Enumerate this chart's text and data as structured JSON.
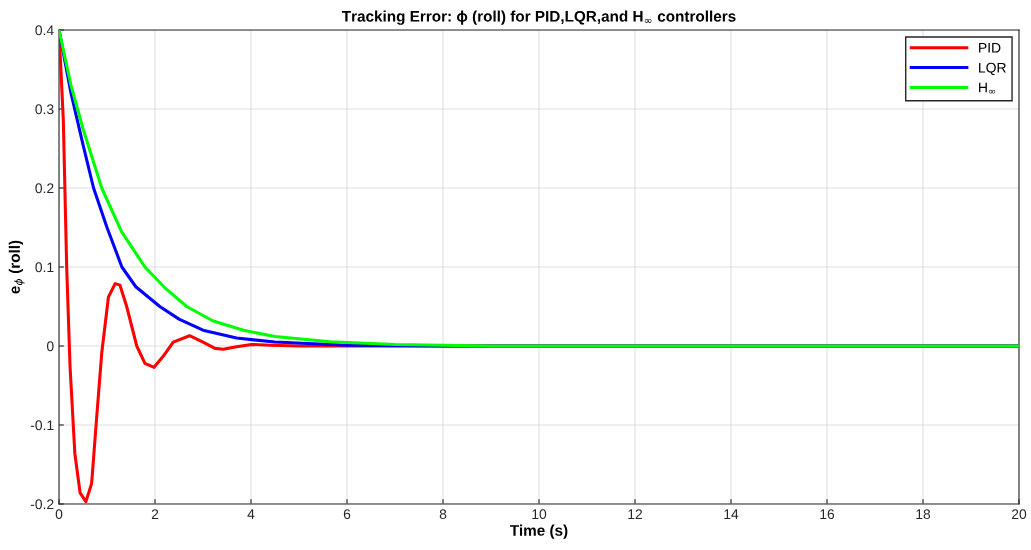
{
  "chart_data": {
    "type": "line",
    "title": "Tracking Error: ϕ (roll) for PID,LQR,and H$_{∞}$ controllers",
    "xlabel": "Time (s)",
    "ylabel": "e$_{ϕ}$ (roll)",
    "xlim": [
      0,
      20
    ],
    "xticks": [
      0,
      2,
      4,
      6,
      8,
      10,
      12,
      14,
      16,
      18,
      20
    ],
    "ylim": [
      -0.2,
      0.4
    ],
    "yticks": [
      {
        "value": -0.2,
        "label": "-0.2"
      },
      {
        "value": -0.1,
        "label": "-0.1"
      },
      0,
      0.1,
      0.2,
      0.3,
      0.4
    ],
    "grid": true,
    "legend": "top right",
    "line_style": "solid",
    "marker": "none",
    "series": [
      {
        "name": "PID",
        "color": "#ff0000",
        "x": [
          0,
          0.09,
          0.16,
          0.23,
          0.33,
          0.44,
          0.56,
          0.68,
          0.78,
          0.89,
          1.03,
          1.17,
          1.27,
          1.41,
          1.62,
          1.79,
          1.98,
          2.17,
          2.38,
          2.72,
          3.0,
          3.25,
          3.42,
          3.7,
          4.01,
          4.4,
          5,
          20
        ],
        "values": [
          0.4,
          0.286,
          0.1,
          -0.026,
          -0.136,
          -0.186,
          -0.197,
          -0.174,
          -0.094,
          -0.009,
          0.062,
          0.079,
          0.077,
          0.05,
          0,
          -0.022,
          -0.027,
          -0.013,
          0.005,
          0.013,
          0.005,
          -0.003,
          -0.004,
          -0.001,
          0.002,
          0.001,
          0,
          0
        ]
      },
      {
        "name": "LQR",
        "color": "#0000ff",
        "x": [
          0,
          0.25,
          0.5,
          0.72,
          1.0,
          1.31,
          1.6,
          2.1,
          2.5,
          3.0,
          3.7,
          4.5,
          6,
          8,
          20
        ],
        "values": [
          0.4,
          0.32,
          0.255,
          0.2,
          0.15,
          0.1,
          0.075,
          0.05,
          0.034,
          0.02,
          0.01,
          0.005,
          0.001,
          0,
          0
        ]
      },
      {
        "name": "H$_{∞}$",
        "color": "#00ff00",
        "x": [
          0,
          0.25,
          0.5,
          0.89,
          1.3,
          1.79,
          2.2,
          2.66,
          3.2,
          3.84,
          4.5,
          5.65,
          7,
          9,
          20
        ],
        "values": [
          0.4,
          0.33,
          0.275,
          0.2,
          0.145,
          0.1,
          0.074,
          0.05,
          0.032,
          0.02,
          0.012,
          0.0055,
          0.002,
          0,
          0
        ]
      }
    ]
  }
}
